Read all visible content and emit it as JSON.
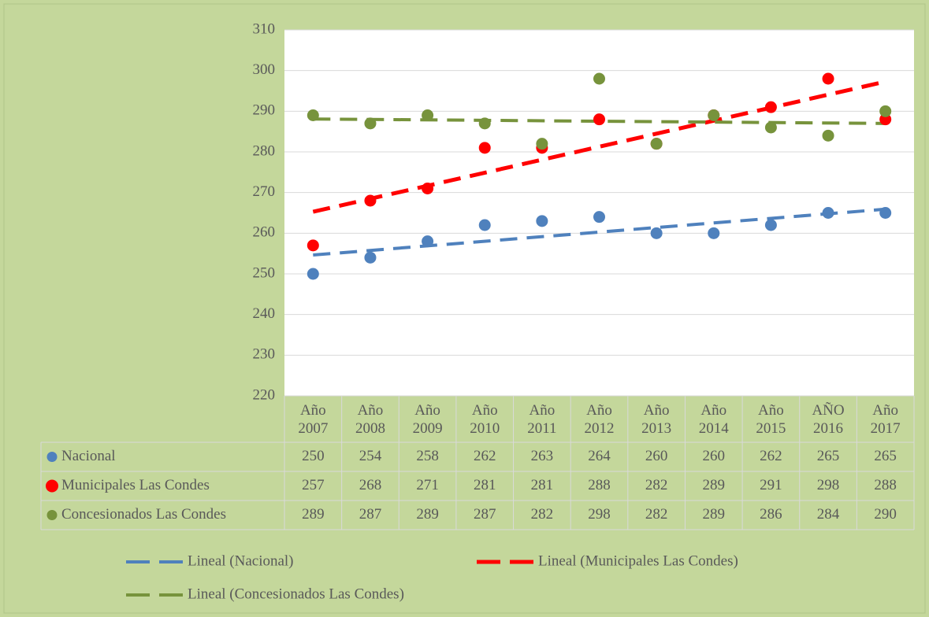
{
  "chart_data": {
    "type": "scatter",
    "categories": [
      "Año 2007",
      "Año 2008",
      "Año 2009",
      "Año 2010",
      "Año 2011",
      "Año 2012",
      "Año 2013",
      "Año 2014",
      "Año 2015",
      "AÑO 2016",
      "Año 2017"
    ],
    "series": [
      {
        "name": "Nacional",
        "color": "#4f81bd",
        "values": [
          250,
          254,
          258,
          262,
          263,
          264,
          260,
          260,
          262,
          265,
          265
        ],
        "trendline": "Lineal (Nacional)"
      },
      {
        "name": "Municipales Las Condes",
        "color": "#ff0000",
        "values": [
          257,
          268,
          271,
          281,
          281,
          288,
          282,
          289,
          291,
          298,
          288
        ],
        "trendline": "Lineal (Municipales Las Condes)"
      },
      {
        "name": "Concesionados Las Condes",
        "color": "#77933c",
        "values": [
          289,
          287,
          289,
          287,
          282,
          298,
          282,
          289,
          286,
          284,
          290
        ],
        "trendline": "Lineal (Concesionados Las Condes)"
      }
    ],
    "ylim": [
      220,
      310
    ],
    "yticks": [
      220,
      230,
      240,
      250,
      260,
      270,
      280,
      290,
      300,
      310
    ],
    "grid": true,
    "data_table": true,
    "legend": "bottom"
  }
}
